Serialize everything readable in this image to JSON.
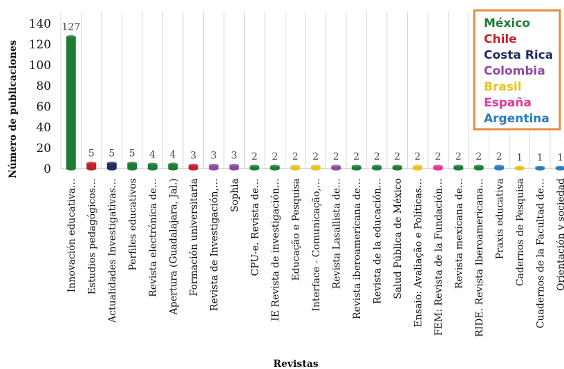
{
  "chart_data": {
    "type": "bar",
    "xlabel": "Revistas",
    "ylabel": "Número de publicaciones",
    "ylim": [
      0,
      140
    ],
    "yticks": [
      0,
      20,
      40,
      60,
      80,
      100,
      120,
      140
    ],
    "grid": "vertical gridlines between categories",
    "legend_position": "top-right",
    "legend": [
      {
        "name": "México",
        "color": "#1e7b34"
      },
      {
        "name": "Chile",
        "color": "#c0232b"
      },
      {
        "name": "Costa Rica",
        "color": "#1f2c5e"
      },
      {
        "name": "Colombia",
        "color": "#8b4aa8"
      },
      {
        "name": "Brasil",
        "color": "#e8c21f"
      },
      {
        "name": "España",
        "color": "#e0399a"
      },
      {
        "name": "Argentina",
        "color": "#2a7bbf"
      }
    ],
    "categories": [
      "Innovación educativa…",
      "Estudios pedagógicos…",
      "Actualidades Investigativas…",
      "Perfiles educativos",
      "Revista electrónica de…",
      "Apertura (Guadalajara, Jal.)",
      "Formación universitaria",
      "Revista de Investigación,…",
      "Sophia",
      "CPU-e. Revista de…",
      "IE Revista de investigación…",
      "Educação e Pesquisa",
      "Interface - Comunicação,…",
      "Revista Lasallista de…",
      "Revista iberoamericana de…",
      "Revista de la educación…",
      "Salud Pública de México",
      "Ensaio: Avaliação e Políticas…",
      "FEM: Revista de la Fundación…",
      "Revista mexicana de…",
      "RIDE. Revista Iberoamericana…",
      "Praxis educativa",
      "Cadernos de Pesquisa",
      "Cuadernos de la Facultad de…",
      "Orientación y sociedad"
    ],
    "values": [
      127,
      5,
      5,
      5,
      4,
      4,
      3,
      3,
      3,
      2,
      2,
      2,
      2,
      2,
      2,
      2,
      2,
      2,
      2,
      2,
      2,
      2,
      1,
      1,
      1
    ],
    "bar_colors": [
      "#1e7b34",
      "#c0232b",
      "#1f2c5e",
      "#1e7b34",
      "#1e7b34",
      "#1e7b34",
      "#c0232b",
      "#8b4aa8",
      "#8b4aa8",
      "#1e7b34",
      "#1e7b34",
      "#e8c21f",
      "#e8c21f",
      "#8b4aa8",
      "#1e7b34",
      "#1e7b34",
      "#1e7b34",
      "#e8c21f",
      "#e0399a",
      "#1e7b34",
      "#1e7b34",
      "#2a7bbf",
      "#e8c21f",
      "#2a7bbf",
      "#2a7bbf"
    ]
  }
}
